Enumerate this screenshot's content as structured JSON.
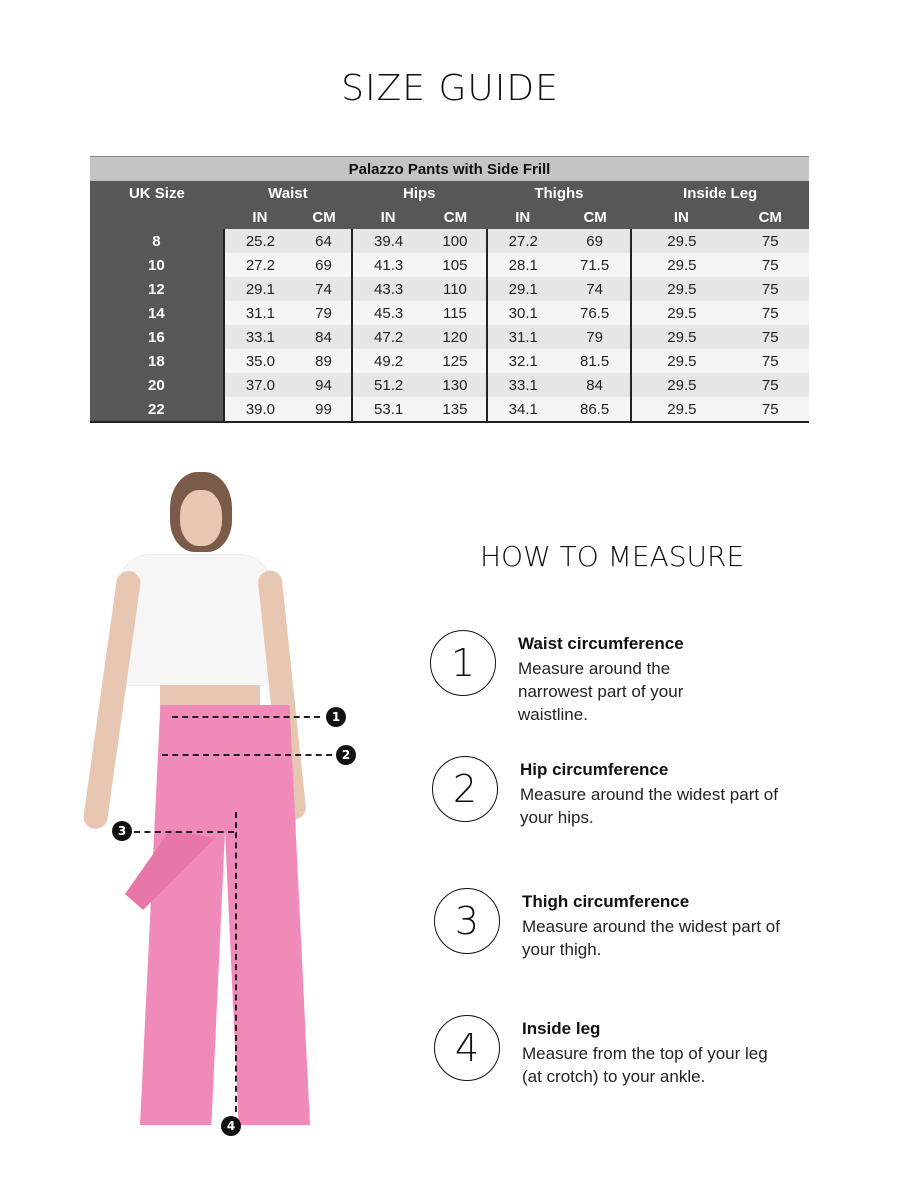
{
  "title": "SIZE GUIDE",
  "table": {
    "caption": "Palazzo Pants with Side Frill",
    "headers": [
      "UK Size",
      "Waist",
      "Hips",
      "Thighs",
      "Inside Leg"
    ],
    "units": [
      "IN",
      "CM",
      "IN",
      "CM",
      "IN",
      "CM",
      "IN",
      "CM"
    ],
    "rows": [
      [
        "8",
        "25.2",
        "64",
        "39.4",
        "100",
        "27.2",
        "69",
        "29.5",
        "75"
      ],
      [
        "10",
        "27.2",
        "69",
        "41.3",
        "105",
        "28.1",
        "71.5",
        "29.5",
        "75"
      ],
      [
        "12",
        "29.1",
        "74",
        "43.3",
        "110",
        "29.1",
        "74",
        "29.5",
        "75"
      ],
      [
        "14",
        "31.1",
        "79",
        "45.3",
        "115",
        "30.1",
        "76.5",
        "29.5",
        "75"
      ],
      [
        "16",
        "33.1",
        "84",
        "47.2",
        "120",
        "31.1",
        "79",
        "29.5",
        "75"
      ],
      [
        "18",
        "35.0",
        "89",
        "49.2",
        "125",
        "32.1",
        "81.5",
        "29.5",
        "75"
      ],
      [
        "20",
        "37.0",
        "94",
        "51.2",
        "130",
        "33.1",
        "84",
        "29.5",
        "75"
      ],
      [
        "22",
        "39.0",
        "99",
        "53.1",
        "135",
        "34.1",
        "86.5",
        "29.5",
        "75"
      ]
    ]
  },
  "how": {
    "title": "HOW TO MEASURE",
    "steps": [
      {
        "num": "1",
        "title": "Waist circumference",
        "desc": "Measure around the narrowest part of your waistline."
      },
      {
        "num": "2",
        "title": "Hip circumference",
        "desc": "Measure around the widest part of your hips."
      },
      {
        "num": "3",
        "title": "Thigh circumference",
        "desc": "Measure around the widest part of your thigh."
      },
      {
        "num": "4",
        "title": "Inside leg",
        "desc": "Measure from the top of your leg (at crotch) to your ankle."
      }
    ]
  },
  "figure_markers": [
    "1",
    "2",
    "3",
    "4"
  ],
  "colors": {
    "header": "#575757",
    "caption": "#c4c4c4",
    "pants": "#f08ab8"
  }
}
